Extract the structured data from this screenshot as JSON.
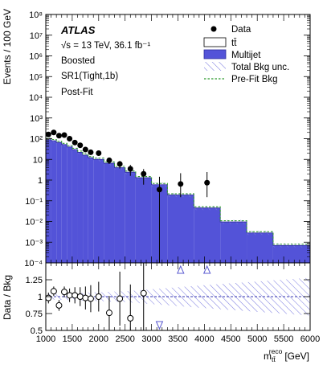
{
  "chart_data": [
    {
      "type": "histogram",
      "atlas_label": "ATLAS",
      "energy_label": "√s = 13 TeV, 36.1 fb⁻¹",
      "annotations": [
        "Boosted",
        "SR1(Tight,1b)",
        "Post-Fit"
      ],
      "ylabel": "Events / 100 GeV",
      "yscale": "log",
      "ylim": [
        0.0001,
        100000000
      ],
      "y_ticks": [
        "10⁻⁴",
        "10⁻³",
        "10⁻²",
        "10⁻¹",
        "1",
        "10",
        "10²",
        "10³",
        "10⁴",
        "10⁵",
        "10⁶",
        "10⁷",
        "10⁸"
      ],
      "xlim": [
        1000,
        6000
      ],
      "legend_position": "top-right",
      "legend": {
        "data": "Data",
        "ttbar": "tt̄",
        "multijet": "Multijet",
        "unc": "Total Bkg unc.",
        "prefit": "Pre-Fit Bkg"
      },
      "colors": {
        "multijet": "#5353d8",
        "multijet_edge": "#2f2f9e",
        "prefit": "#2e9a2e",
        "unc": "#7b7be0"
      },
      "bkg_bins": [
        {
          "lo": 1000,
          "hi": 1100,
          "value": 90
        },
        {
          "lo": 1100,
          "hi": 1200,
          "value": 80
        },
        {
          "lo": 1200,
          "hi": 1300,
          "value": 65
        },
        {
          "lo": 1300,
          "hi": 1400,
          "value": 52
        },
        {
          "lo": 1400,
          "hi": 1500,
          "value": 40
        },
        {
          "lo": 1500,
          "hi": 1600,
          "value": 30
        },
        {
          "lo": 1600,
          "hi": 1700,
          "value": 22
        },
        {
          "lo": 1700,
          "hi": 1800,
          "value": 16
        },
        {
          "lo": 1800,
          "hi": 1900,
          "value": 12
        },
        {
          "lo": 1900,
          "hi": 2100,
          "value": 10
        },
        {
          "lo": 2100,
          "hi": 2300,
          "value": 6.5
        },
        {
          "lo": 2300,
          "hi": 2500,
          "value": 4
        },
        {
          "lo": 2500,
          "hi": 2700,
          "value": 2.4
        },
        {
          "lo": 2700,
          "hi": 3000,
          "value": 1.3
        },
        {
          "lo": 3000,
          "hi": 3300,
          "value": 0.6
        },
        {
          "lo": 3300,
          "hi": 3800,
          "value": 0.19
        },
        {
          "lo": 3800,
          "hi": 4300,
          "value": 0.045
        },
        {
          "lo": 4300,
          "hi": 4800,
          "value": 0.0095
        },
        {
          "lo": 4800,
          "hi": 5300,
          "value": 0.0028
        },
        {
          "lo": 5300,
          "hi": 6000,
          "value": 0.0007
        }
      ],
      "data_points": [
        {
          "x": 1050,
          "y": 160,
          "err_lo": 13,
          "err_hi": 13
        },
        {
          "x": 1150,
          "y": 200,
          "err_lo": 14,
          "err_hi": 14
        },
        {
          "x": 1250,
          "y": 140,
          "err_lo": 12,
          "err_hi": 12
        },
        {
          "x": 1350,
          "y": 150,
          "err_lo": 12,
          "err_hi": 12
        },
        {
          "x": 1450,
          "y": 100,
          "err_lo": 10,
          "err_hi": 10
        },
        {
          "x": 1550,
          "y": 65,
          "err_lo": 8,
          "err_hi": 8
        },
        {
          "x": 1650,
          "y": 48,
          "err_lo": 7,
          "err_hi": 7
        },
        {
          "x": 1750,
          "y": 30,
          "err_lo": 5.5,
          "err_hi": 5.5
        },
        {
          "x": 1850,
          "y": 22,
          "err_lo": 4.7,
          "err_hi": 4.7
        },
        {
          "x": 2000,
          "y": 20,
          "err_lo": 4.5,
          "err_hi": 4.5
        },
        {
          "x": 2200,
          "y": 9,
          "err_lo": 3,
          "err_hi": 3
        },
        {
          "x": 2400,
          "y": 6,
          "err_lo": 2.4,
          "err_hi": 2.4
        },
        {
          "x": 2600,
          "y": 3.5,
          "err_lo": 1.9,
          "err_hi": 1.9
        },
        {
          "x": 2850,
          "y": 2,
          "err_lo": 1.4,
          "err_hi": 1.4
        },
        {
          "x": 3150,
          "y": 0.35,
          "err_lo": 0.3499,
          "err_hi": 1.1
        },
        {
          "x": 3550,
          "y": 0.65,
          "err_lo": 0.5,
          "err_hi": 1.5
        },
        {
          "x": 4050,
          "y": 0.75,
          "err_lo": 0.6,
          "err_hi": 1.7
        }
      ]
    },
    {
      "type": "ratio",
      "ylabel": "Data / Bkg",
      "xlabel_main": "m",
      "xlabel_sub": "tt̄",
      "xlabel_sup": "reco",
      "xlabel_unit": "[GeV]",
      "ylim": [
        0.5,
        1.5
      ],
      "y_ticks": [
        0.5,
        0.75,
        1,
        1.25
      ],
      "x_ticks": [
        1000,
        1500,
        2000,
        2500,
        3000,
        3500,
        4000,
        4500,
        5000,
        5500,
        6000
      ],
      "unc_band": [
        {
          "x": 1000,
          "half": 0.04
        },
        {
          "x": 2500,
          "half": 0.08
        },
        {
          "x": 4000,
          "half": 0.17
        },
        {
          "x": 6000,
          "half": 0.28
        }
      ],
      "points": [
        {
          "x": 1050,
          "y": 0.98,
          "err": 0.08
        },
        {
          "x": 1150,
          "y": 1.08,
          "err": 0.07
        },
        {
          "x": 1250,
          "y": 0.87,
          "err": 0.08
        },
        {
          "x": 1350,
          "y": 1.07,
          "err": 0.08
        },
        {
          "x": 1450,
          "y": 1.02,
          "err": 0.1
        },
        {
          "x": 1550,
          "y": 1.02,
          "err": 0.12
        },
        {
          "x": 1650,
          "y": 1.0,
          "err": 0.14
        },
        {
          "x": 1750,
          "y": 0.98,
          "err": 0.17
        },
        {
          "x": 1850,
          "y": 0.97,
          "err": 0.2
        },
        {
          "x": 2000,
          "y": 1.0,
          "err": 0.22
        },
        {
          "x": 2200,
          "y": 0.76,
          "err": 0.25
        },
        {
          "x": 2400,
          "y": 0.97,
          "err": 0.4
        },
        {
          "x": 2600,
          "y": 0.68,
          "err": 0.5
        },
        {
          "x": 2850,
          "y": 1.05,
          "err": 0.75
        }
      ],
      "offscale": [
        {
          "x": 3150,
          "dir": "down"
        },
        {
          "x": 3550,
          "dir": "up"
        },
        {
          "x": 4050,
          "dir": "up"
        }
      ]
    }
  ]
}
